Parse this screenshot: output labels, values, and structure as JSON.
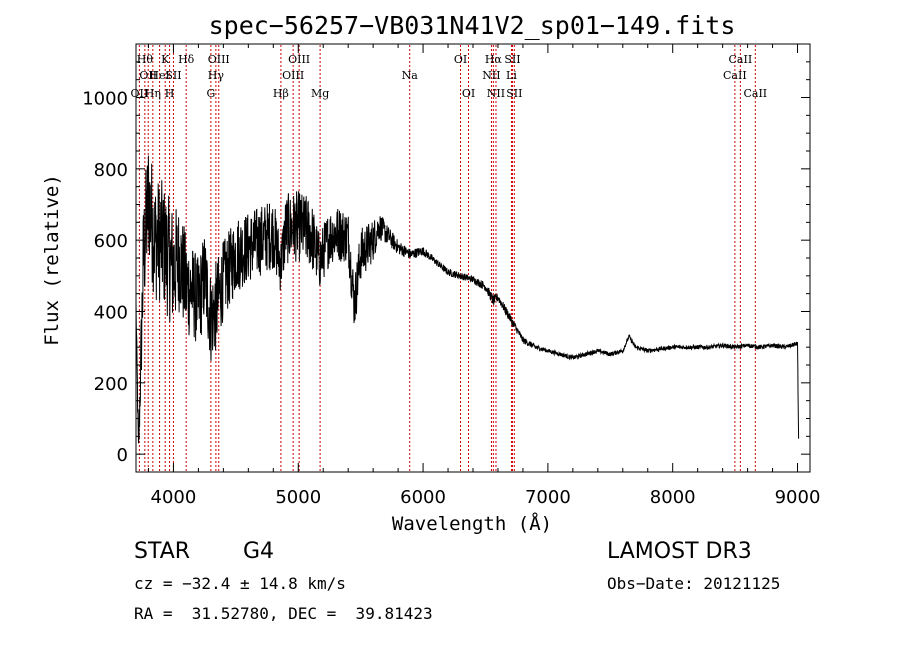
{
  "chart_data": {
    "type": "line",
    "title": "spec−56257−VB031N41V2_sp01−149.fits",
    "xlabel": "Wavelength (Å)",
    "ylabel": "Flux (relative)",
    "xlim": [
      3700,
      9100
    ],
    "ylim": [
      -50,
      1150
    ],
    "xticks": [
      4000,
      5000,
      6000,
      7000,
      8000,
      9000
    ],
    "yticks": [
      0,
      200,
      400,
      600,
      800,
      1000
    ],
    "grid": false,
    "line_color": "#000000",
    "marker_color": "#cc0000",
    "spectrum_anchors": {
      "x": [
        3700,
        3720,
        3760,
        3800,
        3850,
        3900,
        3950,
        4000,
        4050,
        4100,
        4150,
        4200,
        4250,
        4300,
        4350,
        4400,
        4450,
        4500,
        4600,
        4700,
        4800,
        4860,
        4900,
        5000,
        5100,
        5170,
        5250,
        5300,
        5400,
        5450,
        5500,
        5600,
        5650,
        5700,
        5800,
        5900,
        6000,
        6100,
        6200,
        6300,
        6400,
        6500,
        6563,
        6600,
        6700,
        6800,
        6900,
        7000,
        7100,
        7200,
        7300,
        7400,
        7500,
        7600,
        7650,
        7700,
        7800,
        7900,
        8000,
        8100,
        8200,
        8300,
        8400,
        8500,
        8600,
        8700,
        8800,
        8900,
        9000,
        9010
      ],
      "y": [
        420,
        0,
        550,
        720,
        600,
        600,
        560,
        520,
        550,
        470,
        460,
        420,
        500,
        380,
        420,
        490,
        520,
        560,
        580,
        600,
        620,
        530,
        630,
        640,
        620,
        540,
        610,
        620,
        610,
        420,
        560,
        600,
        640,
        620,
        580,
        560,
        570,
        540,
        510,
        500,
        490,
        470,
        430,
        440,
        380,
        320,
        300,
        290,
        280,
        270,
        280,
        290,
        280,
        290,
        330,
        300,
        290,
        295,
        300,
        300,
        300,
        300,
        305,
        300,
        305,
        300,
        305,
        300,
        310,
        0
      ],
      "noise_amplitude": [
        80,
        80,
        350,
        350,
        350,
        350,
        350,
        350,
        300,
        300,
        260,
        260,
        260,
        260,
        260,
        220,
        220,
        220,
        200,
        200,
        200,
        160,
        200,
        200,
        200,
        160,
        160,
        160,
        150,
        150,
        150,
        120,
        80,
        60,
        40,
        30,
        25,
        20,
        20,
        20,
        20,
        25,
        30,
        25,
        25,
        20,
        15,
        12,
        12,
        12,
        12,
        12,
        12,
        12,
        12,
        12,
        12,
        12,
        12,
        12,
        12,
        12,
        12,
        12,
        12,
        12,
        12,
        12,
        12,
        0
      ]
    },
    "spectral_lines": [
      {
        "wavelength": 3727,
        "label": "OII",
        "row": 3
      },
      {
        "wavelength": 3771,
        "label": "Hθ",
        "row": 1
      },
      {
        "wavelength": 3798,
        "label": "OII",
        "row": 2
      },
      {
        "wavelength": 3835,
        "label": "Hη",
        "row": 3
      },
      {
        "wavelength": 3889,
        "label": "HeI",
        "row": 2
      },
      {
        "wavelength": 3934,
        "label": "K",
        "row": 1
      },
      {
        "wavelength": 3969,
        "label": "H",
        "row": 3
      },
      {
        "wavelength": 4000,
        "label": "SII",
        "row": 2
      },
      {
        "wavelength": 4102,
        "label": "Hδ",
        "row": 1
      },
      {
        "wavelength": 4300,
        "label": "G",
        "row": 3
      },
      {
        "wavelength": 4340,
        "label": "Hγ",
        "row": 2
      },
      {
        "wavelength": 4363,
        "label": "OIII",
        "row": 1
      },
      {
        "wavelength": 4861,
        "label": "Hβ",
        "row": 3
      },
      {
        "wavelength": 4959,
        "label": "OIII",
        "row": 2
      },
      {
        "wavelength": 5007,
        "label": "OIII",
        "row": 1
      },
      {
        "wavelength": 5175,
        "label": "Mg",
        "row": 3
      },
      {
        "wavelength": 5893,
        "label": "Na",
        "row": 2
      },
      {
        "wavelength": 6300,
        "label": "OI",
        "row": 1
      },
      {
        "wavelength": 6364,
        "label": "OI",
        "row": 3
      },
      {
        "wavelength": 6548,
        "label": "NII",
        "row": 2
      },
      {
        "wavelength": 6563,
        "label": "Hα",
        "row": 1
      },
      {
        "wavelength": 6584,
        "label": "NII",
        "row": 3
      },
      {
        "wavelength": 6708,
        "label": "Li",
        "row": 2
      },
      {
        "wavelength": 6716,
        "label": "SII",
        "row": 1
      },
      {
        "wavelength": 6731,
        "label": "SII",
        "row": 3
      },
      {
        "wavelength": 8498,
        "label": "CaII",
        "row": 2
      },
      {
        "wavelength": 8542,
        "label": "CaII",
        "row": 1
      },
      {
        "wavelength": 8662,
        "label": "CaII",
        "row": 3
      }
    ]
  },
  "info": {
    "object_class": "STAR",
    "subclass": "G4",
    "survey": "LAMOST DR3",
    "cz": "cz = −32.4 ± 14.8 km/s",
    "obs_date": "Obs−Date: 20121125",
    "coords": "RA =  31.52780, DEC =  39.81423"
  }
}
